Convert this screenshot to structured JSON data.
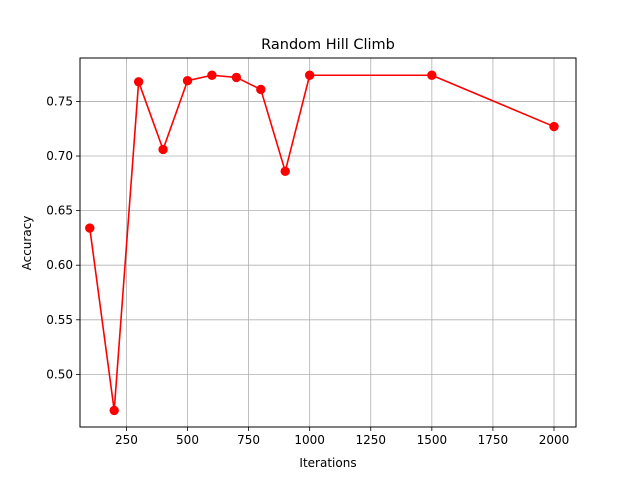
{
  "chart_data": {
    "type": "line",
    "title": "Random Hill Climb",
    "xlabel": "Iterations",
    "ylabel": "Accuracy",
    "xlim": [
      60,
      2090
    ],
    "ylim": [
      0.4518,
      0.7898
    ],
    "x_ticks": [
      250,
      500,
      750,
      1000,
      1250,
      1500,
      1750,
      2000
    ],
    "x_tick_labels": [
      "250",
      "500",
      "750",
      "1000",
      "1250",
      "1500",
      "1750",
      "2000"
    ],
    "y_ticks": [
      0.5,
      0.55,
      0.6,
      0.65,
      0.7,
      0.75
    ],
    "y_tick_labels": [
      "0.50",
      "0.55",
      "0.60",
      "0.65",
      "0.70",
      "0.75"
    ],
    "grid": true,
    "series": [
      {
        "color": "#ff0000",
        "marker": "circle",
        "x": [
          100,
          200,
          300,
          400,
          500,
          600,
          700,
          800,
          900,
          1000,
          1500,
          2000
        ],
        "y": [
          0.634,
          0.467,
          0.768,
          0.706,
          0.769,
          0.774,
          0.772,
          0.761,
          0.686,
          0.774,
          0.774,
          0.727
        ]
      }
    ]
  }
}
